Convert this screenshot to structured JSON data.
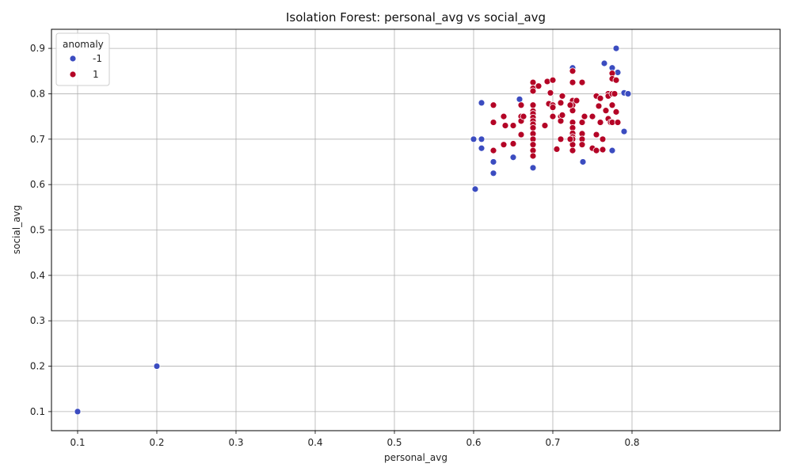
{
  "chart_data": {
    "type": "scatter",
    "title": "Isolation Forest: personal_avg vs social_avg",
    "xlabel": "personal_avg",
    "ylabel": "social_avg",
    "xlim": [
      0.067,
      0.987
    ],
    "ylim": [
      0.058,
      0.942
    ],
    "xticks": [
      "0.1",
      "0.2",
      "0.3",
      "0.4",
      "0.5",
      "0.6",
      "0.7",
      "0.8"
    ],
    "yticks": [
      "0.1",
      "0.2",
      "0.3",
      "0.4",
      "0.5",
      "0.6",
      "0.7",
      "0.8",
      "0.9"
    ],
    "grid": true,
    "legend": {
      "title": "anomaly",
      "placement": "top-left"
    },
    "series": [
      {
        "name": "-1",
        "color": "#3b4cc0",
        "points": [
          [
            0.1,
            0.1
          ],
          [
            0.2,
            0.2
          ],
          [
            0.6,
            0.7
          ],
          [
            0.602,
            0.59
          ],
          [
            0.61,
            0.78
          ],
          [
            0.61,
            0.7
          ],
          [
            0.61,
            0.68
          ],
          [
            0.625,
            0.65
          ],
          [
            0.625,
            0.625
          ],
          [
            0.65,
            0.66
          ],
          [
            0.658,
            0.788
          ],
          [
            0.675,
            0.637
          ],
          [
            0.725,
            0.857
          ],
          [
            0.738,
            0.65
          ],
          [
            0.765,
            0.867
          ],
          [
            0.775,
            0.857
          ],
          [
            0.775,
            0.675
          ],
          [
            0.78,
            0.9
          ],
          [
            0.782,
            0.847
          ],
          [
            0.79,
            0.802
          ],
          [
            0.795,
            0.8
          ],
          [
            0.79,
            0.717
          ]
        ]
      },
      {
        "name": "1",
        "color": "#b40426",
        "points": [
          [
            0.625,
            0.775
          ],
          [
            0.625,
            0.737
          ],
          [
            0.625,
            0.675
          ],
          [
            0.638,
            0.75
          ],
          [
            0.64,
            0.73
          ],
          [
            0.638,
            0.688
          ],
          [
            0.65,
            0.73
          ],
          [
            0.65,
            0.69
          ],
          [
            0.66,
            0.775
          ],
          [
            0.66,
            0.75
          ],
          [
            0.66,
            0.74
          ],
          [
            0.66,
            0.71
          ],
          [
            0.663,
            0.75
          ],
          [
            0.675,
            0.825
          ],
          [
            0.675,
            0.812
          ],
          [
            0.675,
            0.806
          ],
          [
            0.675,
            0.775
          ],
          [
            0.675,
            0.762
          ],
          [
            0.675,
            0.756
          ],
          [
            0.675,
            0.748
          ],
          [
            0.675,
            0.74
          ],
          [
            0.675,
            0.733
          ],
          [
            0.675,
            0.725
          ],
          [
            0.675,
            0.712
          ],
          [
            0.675,
            0.7
          ],
          [
            0.675,
            0.688
          ],
          [
            0.675,
            0.675
          ],
          [
            0.675,
            0.663
          ],
          [
            0.682,
            0.817
          ],
          [
            0.69,
            0.73
          ],
          [
            0.693,
            0.827
          ],
          [
            0.695,
            0.778
          ],
          [
            0.697,
            0.802
          ],
          [
            0.7,
            0.83
          ],
          [
            0.7,
            0.775
          ],
          [
            0.7,
            0.77
          ],
          [
            0.7,
            0.75
          ],
          [
            0.705,
            0.678
          ],
          [
            0.71,
            0.78
          ],
          [
            0.71,
            0.75
          ],
          [
            0.71,
            0.74
          ],
          [
            0.71,
            0.7
          ],
          [
            0.712,
            0.795
          ],
          [
            0.712,
            0.753
          ],
          [
            0.725,
            0.85
          ],
          [
            0.725,
            0.825
          ],
          [
            0.725,
            0.785
          ],
          [
            0.725,
            0.775
          ],
          [
            0.725,
            0.763
          ],
          [
            0.725,
            0.737
          ],
          [
            0.725,
            0.725
          ],
          [
            0.725,
            0.713
          ],
          [
            0.725,
            0.705
          ],
          [
            0.725,
            0.7
          ],
          [
            0.725,
            0.688
          ],
          [
            0.725,
            0.675
          ],
          [
            0.722,
            0.775
          ],
          [
            0.722,
            0.7
          ],
          [
            0.73,
            0.785
          ],
          [
            0.737,
            0.825
          ],
          [
            0.737,
            0.737
          ],
          [
            0.737,
            0.712
          ],
          [
            0.737,
            0.7
          ],
          [
            0.737,
            0.688
          ],
          [
            0.74,
            0.75
          ],
          [
            0.75,
            0.75
          ],
          [
            0.75,
            0.68
          ],
          [
            0.755,
            0.795
          ],
          [
            0.755,
            0.71
          ],
          [
            0.755,
            0.675
          ],
          [
            0.758,
            0.773
          ],
          [
            0.76,
            0.79
          ],
          [
            0.76,
            0.737
          ],
          [
            0.763,
            0.7
          ],
          [
            0.763,
            0.677
          ],
          [
            0.767,
            0.763
          ],
          [
            0.77,
            0.8
          ],
          [
            0.77,
            0.795
          ],
          [
            0.77,
            0.745
          ],
          [
            0.773,
            0.737
          ],
          [
            0.775,
            0.845
          ],
          [
            0.775,
            0.833
          ],
          [
            0.775,
            0.8
          ],
          [
            0.775,
            0.775
          ],
          [
            0.775,
            0.737
          ],
          [
            0.778,
            0.8
          ],
          [
            0.78,
            0.83
          ],
          [
            0.78,
            0.76
          ],
          [
            0.782,
            0.737
          ]
        ]
      }
    ]
  }
}
